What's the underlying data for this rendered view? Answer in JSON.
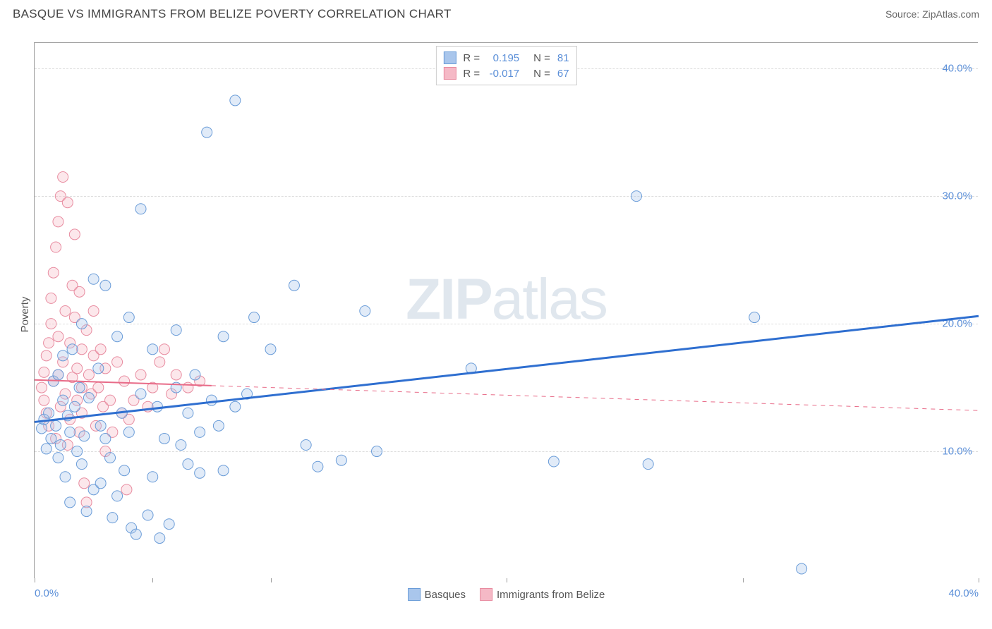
{
  "title": "BASQUE VS IMMIGRANTS FROM BELIZE POVERTY CORRELATION CHART",
  "source": "Source: ZipAtlas.com",
  "ylabel": "Poverty",
  "watermark_a": "ZIP",
  "watermark_b": "atlas",
  "chart": {
    "type": "scatter",
    "xlim": [
      0,
      40
    ],
    "ylim": [
      0,
      42
    ],
    "xtick_positions": [
      0,
      5,
      10,
      20,
      30,
      40
    ],
    "xtick_labels_shown": {
      "0": "0.0%",
      "40": "40.0%"
    },
    "ytick_positions": [
      10,
      20,
      30,
      40
    ],
    "ytick_labels": [
      "10.0%",
      "20.0%",
      "30.0%",
      "40.0%"
    ],
    "grid_color": "#dddddd",
    "axis_color": "#999999",
    "background_color": "#ffffff",
    "tick_label_color": "#5b8fd8",
    "tick_label_fontsize": 15,
    "title_fontsize": 17,
    "title_color": "#444444",
    "marker_radius": 7.5,
    "marker_stroke_width": 1,
    "marker_fill_opacity": 0.35,
    "series": [
      {
        "name": "Basques",
        "color_fill": "#a9c6ec",
        "color_stroke": "#6a9cd8",
        "r_label": "R =",
        "r_value": "0.195",
        "n_label": "N =",
        "n_value": "81",
        "trend": {
          "x1": 0,
          "y1": 12.3,
          "x2": 40,
          "y2": 20.6,
          "color": "#2f6fd0",
          "width": 3,
          "solid_until_x": 40
        },
        "points": [
          [
            0.3,
            11.8
          ],
          [
            0.4,
            12.5
          ],
          [
            0.5,
            10.2
          ],
          [
            0.6,
            13.0
          ],
          [
            0.7,
            11.0
          ],
          [
            0.8,
            15.5
          ],
          [
            0.9,
            12.0
          ],
          [
            1.0,
            16.0
          ],
          [
            1.0,
            9.5
          ],
          [
            1.1,
            10.5
          ],
          [
            1.2,
            14.0
          ],
          [
            1.2,
            17.5
          ],
          [
            1.3,
            8.0
          ],
          [
            1.4,
            12.8
          ],
          [
            1.5,
            11.5
          ],
          [
            1.6,
            18.0
          ],
          [
            1.7,
            13.5
          ],
          [
            1.8,
            10.0
          ],
          [
            1.9,
            15.0
          ],
          [
            2.0,
            9.0
          ],
          [
            2.0,
            20.0
          ],
          [
            2.1,
            11.2
          ],
          [
            2.2,
            5.3
          ],
          [
            2.3,
            14.2
          ],
          [
            2.5,
            7.0
          ],
          [
            2.5,
            23.5
          ],
          [
            2.7,
            16.5
          ],
          [
            2.8,
            12.0
          ],
          [
            3.0,
            11.0
          ],
          [
            3.0,
            23.0
          ],
          [
            3.2,
            9.5
          ],
          [
            3.3,
            4.8
          ],
          [
            3.5,
            19.0
          ],
          [
            3.5,
            6.5
          ],
          [
            3.7,
            13.0
          ],
          [
            3.8,
            8.5
          ],
          [
            4.0,
            11.5
          ],
          [
            4.0,
            20.5
          ],
          [
            4.1,
            4.0
          ],
          [
            4.3,
            3.5
          ],
          [
            4.5,
            29.0
          ],
          [
            4.5,
            14.5
          ],
          [
            4.8,
            5.0
          ],
          [
            5.0,
            18.0
          ],
          [
            5.0,
            8.0
          ],
          [
            5.2,
            13.5
          ],
          [
            5.3,
            3.2
          ],
          [
            5.5,
            11.0
          ],
          [
            5.7,
            4.3
          ],
          [
            6.0,
            15.0
          ],
          [
            6.0,
            19.5
          ],
          [
            6.2,
            10.5
          ],
          [
            6.5,
            13.0
          ],
          [
            6.5,
            9.0
          ],
          [
            6.8,
            16.0
          ],
          [
            7.0,
            11.5
          ],
          [
            7.0,
            8.3
          ],
          [
            7.3,
            35.0
          ],
          [
            7.5,
            14.0
          ],
          [
            7.8,
            12.0
          ],
          [
            8.0,
            19.0
          ],
          [
            8.0,
            8.5
          ],
          [
            8.5,
            37.5
          ],
          [
            8.5,
            13.5
          ],
          [
            9.0,
            14.5
          ],
          [
            9.3,
            20.5
          ],
          [
            10.0,
            18.0
          ],
          [
            11.0,
            23.0
          ],
          [
            11.5,
            10.5
          ],
          [
            12.0,
            8.8
          ],
          [
            13.0,
            9.3
          ],
          [
            14.0,
            21.0
          ],
          [
            14.5,
            10.0
          ],
          [
            18.5,
            16.5
          ],
          [
            22.0,
            9.2
          ],
          [
            25.5,
            30.0
          ],
          [
            26.0,
            9.0
          ],
          [
            30.5,
            20.5
          ],
          [
            32.5,
            0.8
          ],
          [
            1.5,
            6.0
          ],
          [
            2.8,
            7.5
          ]
        ]
      },
      {
        "name": "Immigrants from Belize",
        "color_fill": "#f5b9c6",
        "color_stroke": "#e88ca0",
        "r_label": "R =",
        "r_value": "-0.017",
        "n_label": "N =",
        "n_value": "67",
        "trend": {
          "x1": 0,
          "y1": 15.6,
          "x2": 40,
          "y2": 13.2,
          "color": "#e86b88",
          "width": 2,
          "solid_until_x": 7.5
        },
        "points": [
          [
            0.3,
            15.0
          ],
          [
            0.4,
            16.2
          ],
          [
            0.4,
            14.0
          ],
          [
            0.5,
            17.5
          ],
          [
            0.5,
            13.0
          ],
          [
            0.6,
            18.5
          ],
          [
            0.6,
            12.0
          ],
          [
            0.7,
            20.0
          ],
          [
            0.7,
            22.0
          ],
          [
            0.8,
            15.5
          ],
          [
            0.8,
            24.0
          ],
          [
            0.9,
            11.0
          ],
          [
            0.9,
            26.0
          ],
          [
            1.0,
            16.0
          ],
          [
            1.0,
            28.0
          ],
          [
            1.0,
            19.0
          ],
          [
            1.1,
            13.5
          ],
          [
            1.1,
            30.0
          ],
          [
            1.2,
            17.0
          ],
          [
            1.2,
            31.5
          ],
          [
            1.3,
            14.5
          ],
          [
            1.3,
            21.0
          ],
          [
            1.4,
            10.5
          ],
          [
            1.4,
            29.5
          ],
          [
            1.5,
            18.5
          ],
          [
            1.5,
            12.5
          ],
          [
            1.6,
            23.0
          ],
          [
            1.6,
            15.8
          ],
          [
            1.7,
            20.5
          ],
          [
            1.7,
            27.0
          ],
          [
            1.8,
            14.0
          ],
          [
            1.8,
            16.5
          ],
          [
            1.9,
            22.5
          ],
          [
            1.9,
            11.5
          ],
          [
            2.0,
            18.0
          ],
          [
            2.0,
            13.0
          ],
          [
            2.0,
            15.0
          ],
          [
            2.1,
            7.5
          ],
          [
            2.2,
            19.5
          ],
          [
            2.2,
            6.0
          ],
          [
            2.3,
            16.0
          ],
          [
            2.4,
            14.5
          ],
          [
            2.5,
            17.5
          ],
          [
            2.5,
            21.0
          ],
          [
            2.6,
            12.0
          ],
          [
            2.7,
            15.0
          ],
          [
            2.8,
            18.0
          ],
          [
            2.9,
            13.5
          ],
          [
            3.0,
            10.0
          ],
          [
            3.0,
            16.5
          ],
          [
            3.2,
            14.0
          ],
          [
            3.3,
            11.5
          ],
          [
            3.5,
            17.0
          ],
          [
            3.7,
            13.0
          ],
          [
            3.8,
            15.5
          ],
          [
            3.9,
            7.0
          ],
          [
            4.0,
            12.5
          ],
          [
            4.2,
            14.0
          ],
          [
            4.5,
            16.0
          ],
          [
            4.8,
            13.5
          ],
          [
            5.0,
            15.0
          ],
          [
            5.3,
            17.0
          ],
          [
            5.5,
            18.0
          ],
          [
            5.8,
            14.5
          ],
          [
            6.0,
            16.0
          ],
          [
            6.5,
            15.0
          ],
          [
            7.0,
            15.5
          ]
        ]
      }
    ]
  }
}
